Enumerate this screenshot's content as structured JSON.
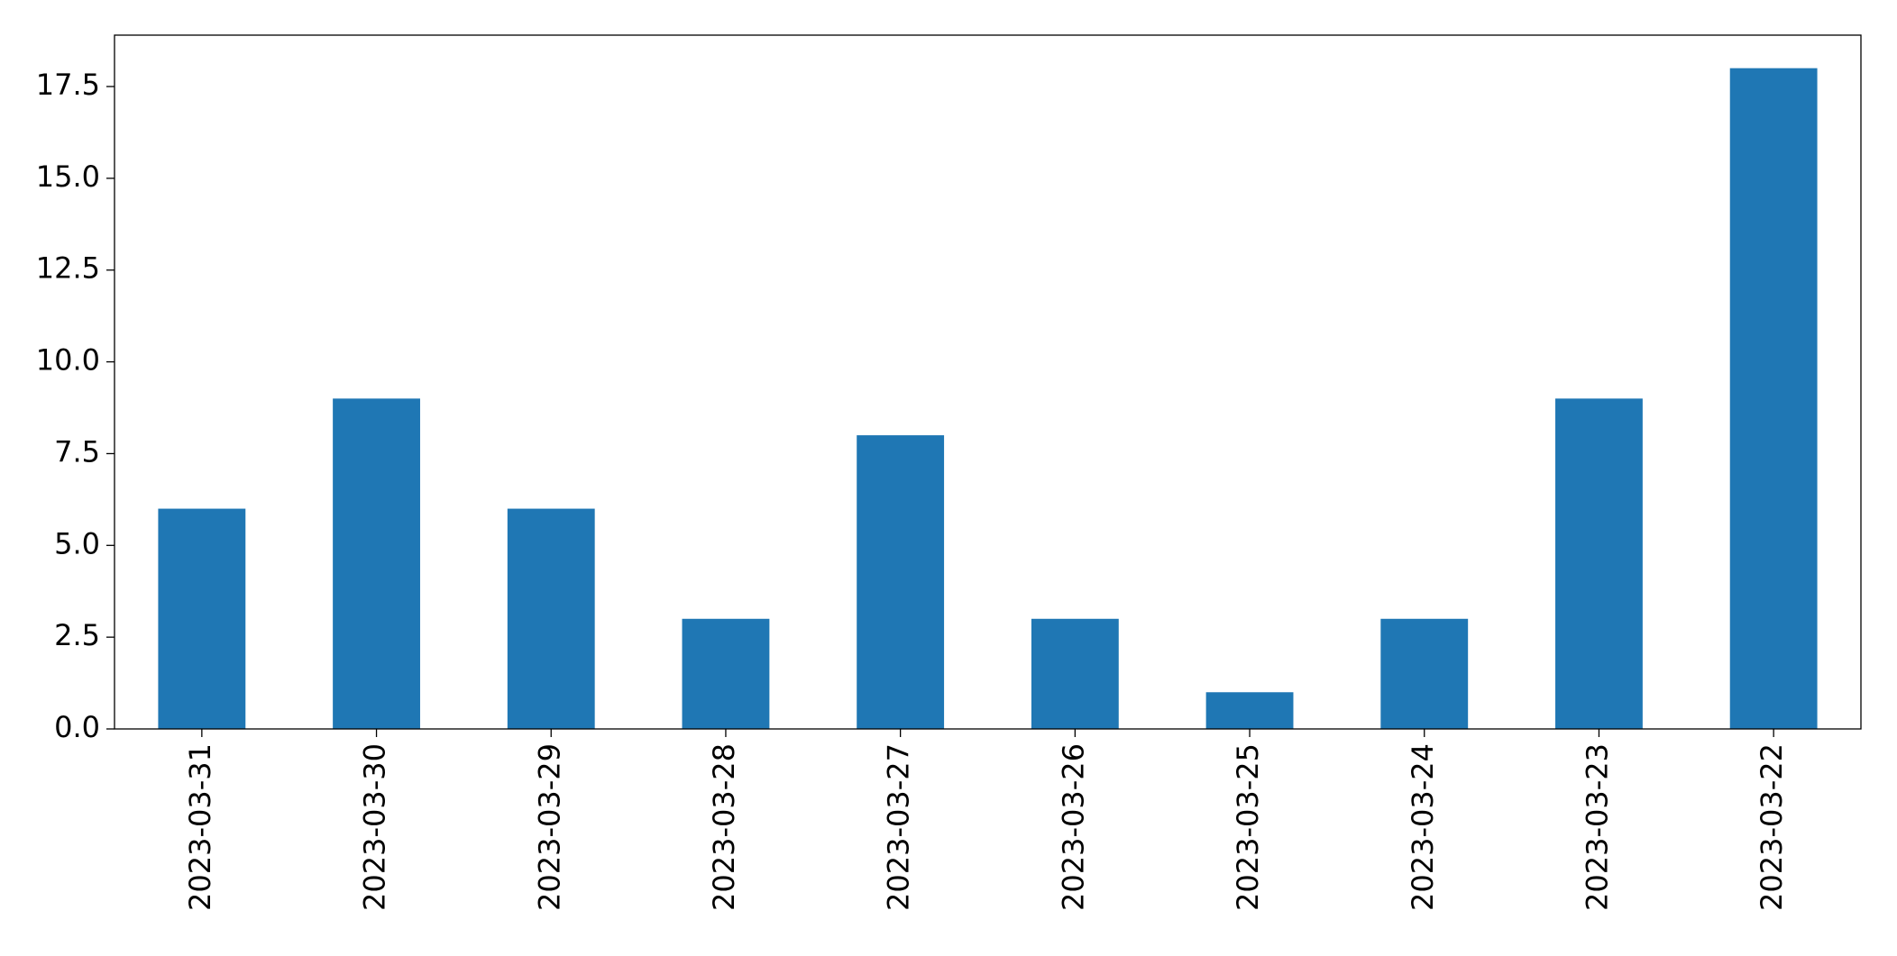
{
  "chart_data": {
    "type": "bar",
    "categories": [
      "2023-03-31",
      "2023-03-30",
      "2023-03-29",
      "2023-03-28",
      "2023-03-27",
      "2023-03-26",
      "2023-03-25",
      "2023-03-24",
      "2023-03-23",
      "2023-03-22"
    ],
    "values": [
      6,
      9,
      6,
      3,
      8,
      3,
      1,
      3,
      9,
      18
    ],
    "color": "#1f77b4",
    "ylim": [
      0,
      18.9
    ],
    "yticks": [
      {
        "value": 0,
        "label": "0.0"
      },
      2.5,
      {
        "value": 5,
        "label": "5.0"
      },
      7.5,
      {
        "value": 10,
        "label": "10.0"
      },
      12.5,
      {
        "value": 15,
        "label": "15.0"
      },
      17.5
    ],
    "grid": false
  }
}
